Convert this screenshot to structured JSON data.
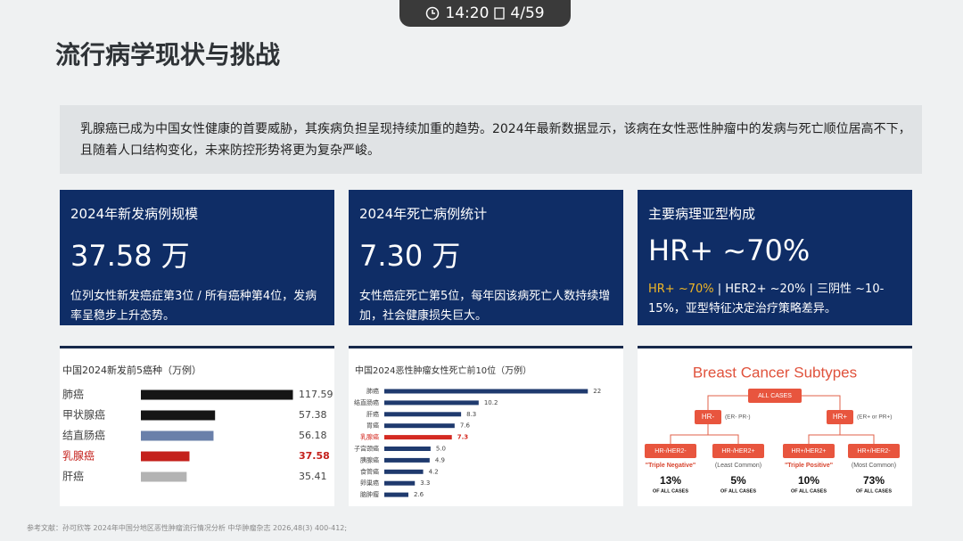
{
  "toolbar": {
    "time": "14:20",
    "page": "4/59"
  },
  "header": {
    "title": "流行病学现状与挑战"
  },
  "intro": "乳腺癌已成为中国女性健康的首要威胁，其疾病负担呈现持续加重的趋势。2024年最新数据显示，该病在女性恶性肿瘤中的发病与死亡顺位居高不下，且随着人口结构变化，未来防控形势将更为复杂严峻。",
  "cards": [
    {
      "label": "2024年新发病例规模",
      "value": "37.58 万",
      "desc": "位列女性新发癌症第3位 / 所有癌种第4位，发病率呈稳步上升态势。"
    },
    {
      "label": "2024年死亡病例统计",
      "value": "7.30 万",
      "desc": "女性癌症死亡第5位，每年因该病死亡人数持续增加，社会健康损失巨大。"
    },
    {
      "label": "主要病理亚型构成",
      "value": "HR+ ~70%",
      "desc_highlight": "HR+ ~70%",
      "desc": " | HER2+ ~20% | 三阴性 ~10-15%，亚型特征决定治疗策略差异。"
    }
  ],
  "chart_data": [
    {
      "type": "hbar",
      "title": "中国2024新发前5癌种（万例）",
      "categories": [
        "肺癌",
        "甲状腺癌",
        "结直肠癌",
        "乳腺癌",
        "肝癌"
      ],
      "values": [
        117.59,
        57.38,
        56.18,
        37.58,
        35.41
      ],
      "colors": [
        "#151515",
        "#151515",
        "#6a80aa",
        "#c4201b",
        "#b3b3b3"
      ],
      "label_colors": [
        "#444444",
        "#444444",
        "#444444",
        "#c4201b",
        "#444444"
      ],
      "xlim": [
        0,
        120
      ]
    },
    {
      "type": "hbar",
      "title": "中国2024恶性肿瘤女性死亡前10位（万例）",
      "categories": [
        "肺癌",
        "结直肠癌",
        "肝癌",
        "胃癌",
        "乳腺癌",
        "子宫颈癌",
        "胰腺癌",
        "食管癌",
        "卵巢癌",
        "脑肿瘤"
      ],
      "values": [
        22,
        10.2,
        8.3,
        7.6,
        7.3,
        5.0,
        4.9,
        4.2,
        3.3,
        2.6
      ],
      "value_labels": [
        "22",
        "10.2",
        "8.3",
        "7.6",
        "7.3",
        "5.0",
        "4.9",
        "4.2",
        "3.3",
        "2.6"
      ],
      "colors": [
        "#1f3a6e",
        "#1f3a6e",
        "#1f3a6e",
        "#1f3a6e",
        "#d42a22",
        "#1f3a6e",
        "#1f3a6e",
        "#1f3a6e",
        "#1f3a6e",
        "#1f3a6e"
      ],
      "label_colors": [
        "#444444",
        "#444444",
        "#444444",
        "#444444",
        "#d42a22",
        "#444444",
        "#444444",
        "#444444",
        "#444444",
        "#444444"
      ],
      "xlim": [
        0,
        24
      ]
    }
  ],
  "diagram": {
    "title": "Breast Cancer Subtypes",
    "root": "ALL CASES",
    "branches": [
      {
        "label": "HR-",
        "note": "(ER- PR-)"
      },
      {
        "label": "HR+",
        "note": "(ER+ or PR+)"
      }
    ],
    "leaves": [
      {
        "label": "HR-/HER2-",
        "sub": "\"Triple Negative\"",
        "pct": "13%",
        "caption": "OF ALL CASES"
      },
      {
        "label": "HR-/HER2+",
        "sub": "(Least Common)",
        "pct": "5%",
        "caption": "OF ALL CASES"
      },
      {
        "label": "HR+/HER2+",
        "sub": "\"Triple Positive\"",
        "pct": "10%",
        "caption": "OF ALL CASES"
      },
      {
        "label": "HR+/HER2-",
        "sub": "(Most Common)",
        "pct": "73%",
        "caption": "OF ALL CASES"
      }
    ]
  },
  "footer": "参考文献：孙可欣等 2024年中国分地区恶性肿瘤流行情况分析 中华肿瘤杂志 2026,48(3) 400-412;"
}
